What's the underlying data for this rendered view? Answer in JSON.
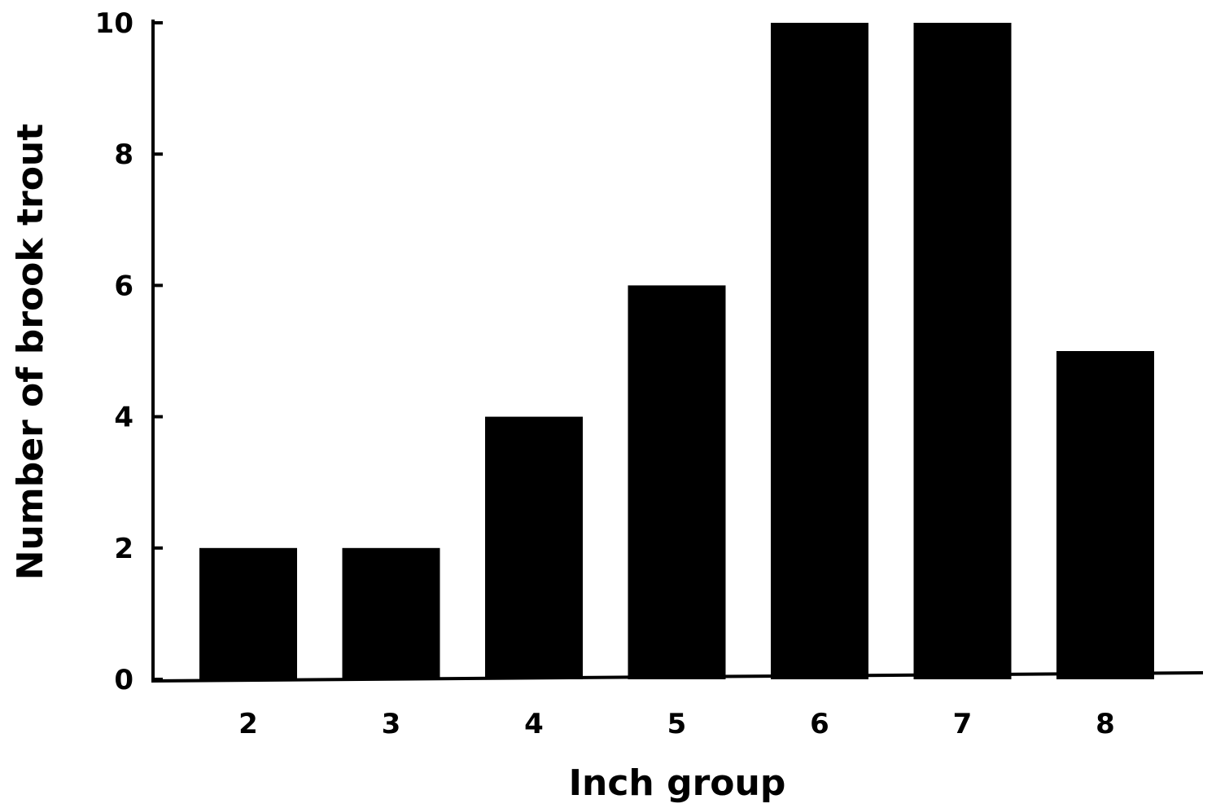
{
  "chart_data": {
    "type": "bar",
    "categories": [
      "2",
      "3",
      "4",
      "5",
      "6",
      "7",
      "8"
    ],
    "values": [
      2,
      2,
      4,
      6,
      10,
      10,
      5
    ],
    "xlabel": "Inch group",
    "ylabel": "Number of brook trout",
    "ylim": [
      0,
      10
    ],
    "yticks": [
      "0",
      "2",
      "4",
      "6",
      "8",
      "10"
    ],
    "ytick_values": [
      0,
      2,
      4,
      6,
      8,
      10
    ],
    "grid": false,
    "bar_color": "#000000"
  }
}
